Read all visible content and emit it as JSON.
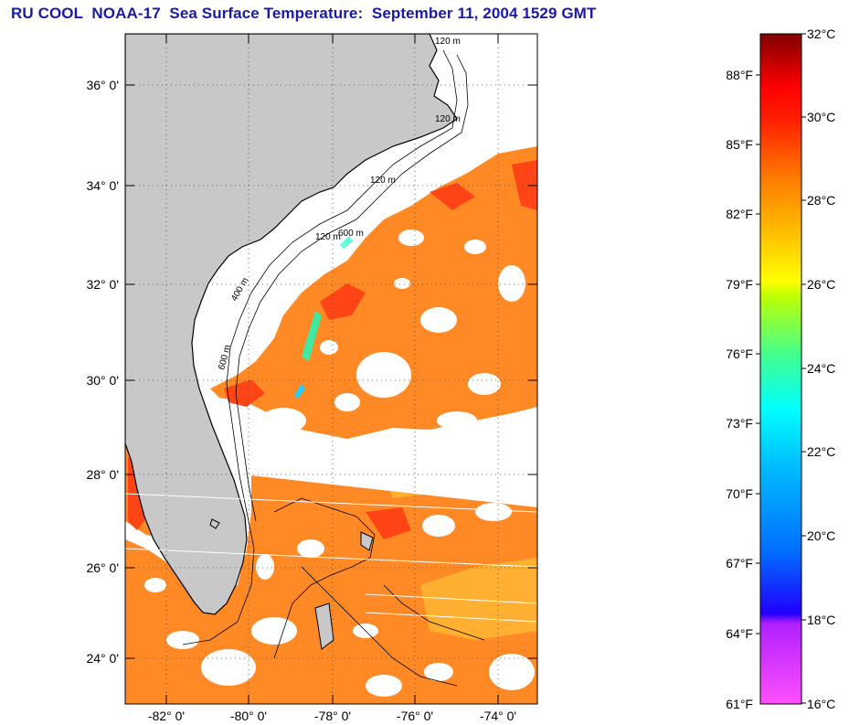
{
  "title": "RU COOL  NOAA-17  Sea Surface Temperature:  September 11, 2004 1529 GMT",
  "latitude_labels": [
    "36° 0'",
    "34° 0'",
    "32° 0'",
    "30° 0'",
    "28° 0'",
    "26° 0'",
    "24° 0'"
  ],
  "longitude_labels": [
    "-82° 0'",
    "-80° 0'",
    "-78° 0'",
    "-76° 0'",
    "-74° 0'"
  ],
  "isobath_labels": [
    "120 m",
    "120 m",
    "120 m",
    "400 m",
    "600 m",
    "600 m",
    "120 m"
  ],
  "colorbar": {
    "fahrenheit_labels": [
      "88°F",
      "85°F",
      "82°F",
      "79°F",
      "76°F",
      "73°F",
      "70°F",
      "67°F",
      "64°F",
      "61°F"
    ],
    "celsius_labels": [
      "32°C",
      "30°C",
      "28°C",
      "26°C",
      "24°C",
      "22°C",
      "20°C",
      "18°C",
      "16°C"
    ],
    "range_celsius": [
      16,
      32
    ],
    "colors": {
      "c32": "#7a0000",
      "c30": "#ff0000",
      "c28": "#ff8000",
      "c26": "#ffff00",
      "c24": "#40ff80",
      "c22": "#00ffff",
      "c20": "#0080ff",
      "c18": "#0000ff",
      "c16": "#ff40ff"
    }
  },
  "colors": {
    "land": "#c8c8c8",
    "title": "#1a1aa8",
    "sst_dominant": "#ff8020"
  }
}
